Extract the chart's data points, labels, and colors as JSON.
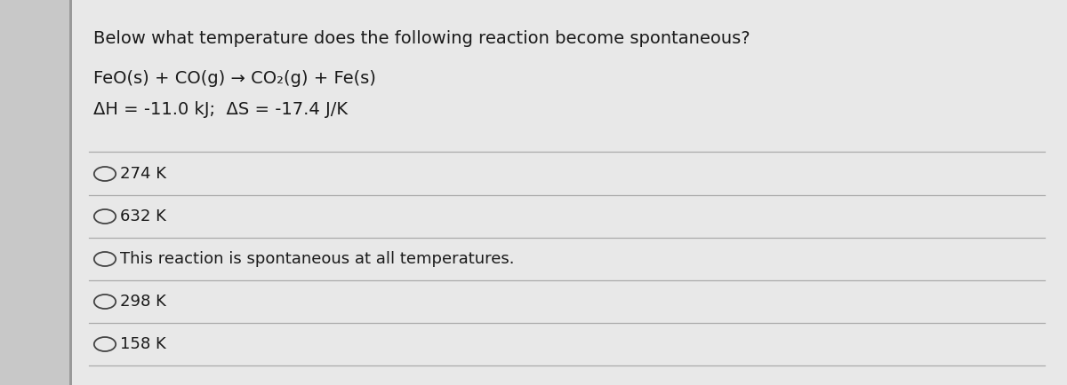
{
  "bg_color": "#c8c8c8",
  "card_color": "#e8e8e8",
  "title": "Below what temperature does the following reaction become spontaneous?",
  "reaction_line": "FeO(s) + CO(g) → CO₂(g) + Fe(s)",
  "thermo_line": "ΔH = -11.0 kJ;  ΔS = -17.4 J/K",
  "options": [
    "274 K",
    "632 K",
    "This reaction is spontaneous at all temperatures.",
    "298 K",
    "158 K"
  ],
  "title_fontsize": 14,
  "option_fontsize": 13,
  "reaction_fontsize": 14,
  "text_color": "#1a1a1a",
  "line_color": "#aaaaaa",
  "circle_color": "#444444",
  "left_bar_color": "#aaaaaa",
  "right_bar_color": "#bbbbbb"
}
